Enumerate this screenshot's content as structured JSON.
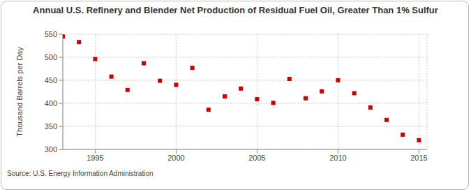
{
  "chart_data": {
    "type": "scatter",
    "title": "Annual U.S. Refinery and Blender Net Production of Residual Fuel Oil, Greater Than 1% Sulfur",
    "y_label": "Thousand Barrels per Day",
    "source": "Source: U.S. Energy Information Administration",
    "x": [
      1993,
      1994,
      1995,
      1996,
      1997,
      1998,
      1999,
      2000,
      2001,
      2002,
      2003,
      2004,
      2005,
      2006,
      2007,
      2008,
      2009,
      2010,
      2011,
      2012,
      2013,
      2014,
      2015
    ],
    "values": [
      545,
      533,
      496,
      458,
      429,
      487,
      449,
      440,
      477,
      386,
      415,
      432,
      409,
      401,
      453,
      411,
      426,
      450,
      422,
      391,
      364,
      332,
      320
    ],
    "color": "#cc0000",
    "marker": "square",
    "xlim": [
      1993,
      2015.5
    ],
    "xticks": [
      1995,
      2000,
      2005,
      2010,
      2015
    ],
    "ylim": [
      300,
      550
    ],
    "yticks": [
      300,
      350,
      400,
      450,
      500,
      550
    ],
    "grid": true
  }
}
